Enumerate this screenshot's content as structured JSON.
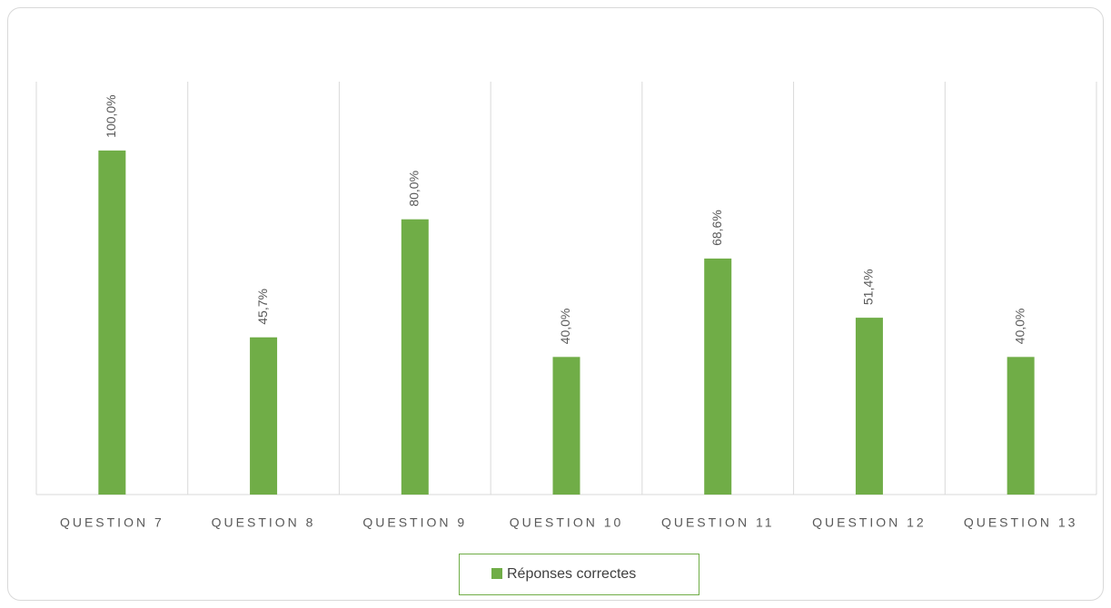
{
  "chart_data": {
    "type": "bar",
    "categories": [
      "QUESTION 7",
      "QUESTION 8",
      "QUESTION 9",
      "QUESTION 10",
      "QUESTION 11",
      "QUESTION 12",
      "QUESTION 13"
    ],
    "series": [
      {
        "name": "Réponses correctes",
        "color": "#70ad47",
        "values": [
          100,
          45.7,
          80,
          40,
          68.6,
          51.4,
          40
        ],
        "value_labels": [
          "100,0%",
          "45,7%",
          "80,0%",
          "40,0%",
          "68,6%",
          "51,4%",
          "40,0%"
        ]
      }
    ],
    "ylim": [
      0,
      120
    ],
    "legend": "bottom"
  }
}
